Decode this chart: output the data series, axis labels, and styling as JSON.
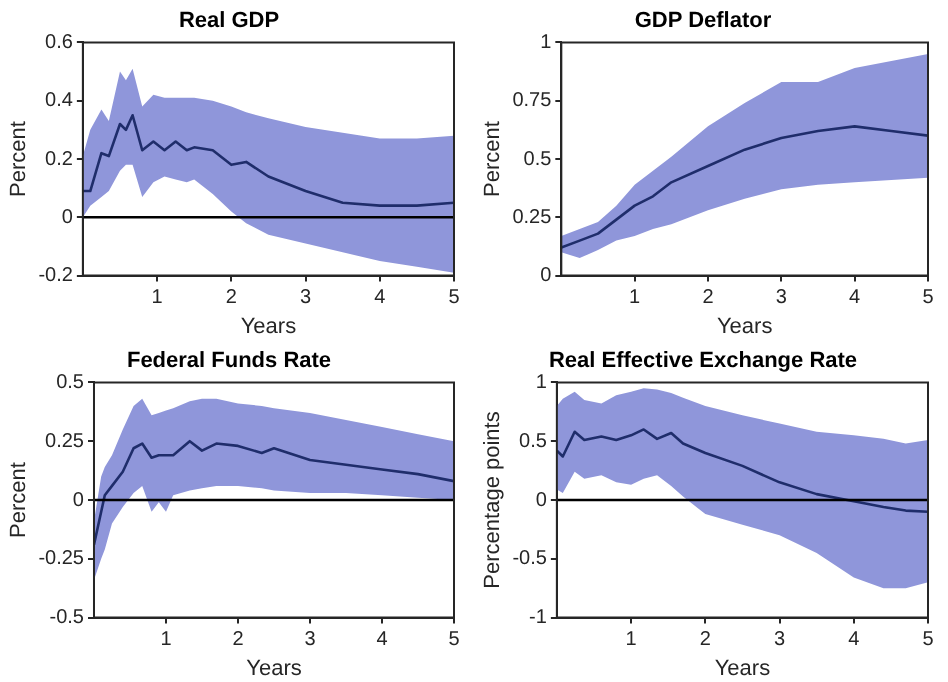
{
  "chart_data": [
    {
      "type": "line",
      "title": "Real GDP",
      "xlabel": "Years",
      "ylabel": "Percent",
      "x": [
        0,
        0.1,
        0.25,
        0.35,
        0.5,
        0.58,
        0.67,
        0.8,
        0.95,
        1.1,
        1.25,
        1.4,
        1.5,
        1.75,
        2,
        2.2,
        2.5,
        3,
        3.5,
        4,
        4.5,
        5
      ],
      "series": [
        {
          "color": "#1f2d6b",
          "values": [
            0.09,
            0.09,
            0.22,
            0.21,
            0.32,
            0.3,
            0.35,
            0.23,
            0.26,
            0.23,
            0.26,
            0.23,
            0.24,
            0.23,
            0.18,
            0.19,
            0.14,
            0.09,
            0.05,
            0.04,
            0.04,
            0.05
          ],
          "upper": [
            0.21,
            0.3,
            0.37,
            0.33,
            0.5,
            0.47,
            0.51,
            0.38,
            0.42,
            0.41,
            0.41,
            0.41,
            0.41,
            0.4,
            0.38,
            0.36,
            0.34,
            0.31,
            0.29,
            0.27,
            0.27,
            0.28
          ],
          "lower": [
            0,
            0.04,
            0.07,
            0.09,
            0.16,
            0.18,
            0.18,
            0.07,
            0.12,
            0.14,
            0.13,
            0.12,
            0.13,
            0.08,
            0.02,
            -0.02,
            -0.06,
            -0.09,
            -0.12,
            -0.15,
            -0.17,
            -0.19
          ]
        }
      ],
      "xlim": [
        0,
        5
      ],
      "xticks": [
        1,
        2,
        3,
        4,
        5
      ],
      "ylim": [
        -0.2,
        0.6
      ],
      "yticks": [
        -0.2,
        0,
        0.2,
        0.4,
        0.6
      ],
      "ref_lines": [
        {
          "axis": "y",
          "value": 0,
          "color": "#000000"
        }
      ],
      "grid": false,
      "legend": false,
      "marker": "none",
      "line_style": "solid"
    },
    {
      "type": "line",
      "title": "GDP Deflator",
      "xlabel": "Years",
      "ylabel": "Percent",
      "x": [
        0,
        0.25,
        0.5,
        0.75,
        1,
        1.25,
        1.5,
        2,
        2.5,
        3,
        3.5,
        4,
        4.5,
        5
      ],
      "series": [
        {
          "color": "#1f2d6b",
          "values": [
            0.12,
            0.15,
            0.18,
            0.24,
            0.3,
            0.34,
            0.4,
            0.47,
            0.54,
            0.59,
            0.62,
            0.64,
            0.62,
            0.6
          ],
          "upper": [
            0.17,
            0.2,
            0.23,
            0.3,
            0.39,
            0.45,
            0.51,
            0.64,
            0.74,
            0.83,
            0.83,
            0.89,
            0.92,
            0.95
          ],
          "lower": [
            0.1,
            0.075,
            0.11,
            0.15,
            0.17,
            0.2,
            0.22,
            0.28,
            0.33,
            0.37,
            0.39,
            0.4,
            0.41,
            0.42
          ]
        }
      ],
      "xlim": [
        0,
        5
      ],
      "xticks": [
        1,
        2,
        3,
        4,
        5
      ],
      "ylim": [
        0,
        1
      ],
      "yticks": [
        0,
        0.25,
        0.5,
        0.75,
        1
      ],
      "grid": false,
      "legend": false,
      "marker": "none",
      "line_style": "solid"
    },
    {
      "type": "line",
      "title": "Federal Funds Rate",
      "xlabel": "Years",
      "ylabel": "Percent",
      "x": [
        0,
        0.1,
        0.15,
        0.25,
        0.4,
        0.55,
        0.67,
        0.8,
        0.9,
        1,
        1.1,
        1.33,
        1.5,
        1.7,
        2,
        2.33,
        2.5,
        3,
        3.5,
        4,
        4.5,
        5
      ],
      "series": [
        {
          "color": "#1f2d6b",
          "values": [
            -0.19,
            -0.05,
            0.02,
            0.06,
            0.12,
            0.22,
            0.24,
            0.18,
            0.19,
            0.19,
            0.19,
            0.25,
            0.21,
            0.24,
            0.23,
            0.2,
            0.22,
            0.17,
            0.15,
            0.13,
            0.11,
            0.08
          ],
          "upper": [
            -0.09,
            0.1,
            0.14,
            0.19,
            0.3,
            0.4,
            0.43,
            0.36,
            0.37,
            0.38,
            0.39,
            0.42,
            0.43,
            0.43,
            0.41,
            0.4,
            0.39,
            0.37,
            0.34,
            0.31,
            0.28,
            0.25
          ],
          "lower": [
            -0.34,
            -0.25,
            -0.21,
            -0.1,
            -0.03,
            0.03,
            0.06,
            -0.05,
            -0.01,
            -0.05,
            0.02,
            0.04,
            0.05,
            0.06,
            0.06,
            0.05,
            0.04,
            0.03,
            0.03,
            0.02,
            0.01,
            0
          ]
        }
      ],
      "xlim": [
        0,
        5
      ],
      "xticks": [
        1,
        2,
        3,
        4,
        5
      ],
      "ylim": [
        -0.5,
        0.5
      ],
      "yticks": [
        -0.5,
        -0.25,
        0,
        0.25,
        0.5
      ],
      "ref_lines": [
        {
          "axis": "y",
          "value": 0,
          "color": "#000000"
        }
      ],
      "grid": false,
      "legend": false,
      "marker": "none",
      "line_style": "solid"
    },
    {
      "type": "line",
      "title": "Real Effective Exchange Rate",
      "xlabel": "Years",
      "ylabel": "Percentage points",
      "x": [
        0,
        0.08,
        0.24,
        0.37,
        0.6,
        0.8,
        1,
        1.17,
        1.35,
        1.54,
        1.7,
        2,
        2.5,
        3,
        3.5,
        4,
        4.4,
        4.7,
        5
      ],
      "series": [
        {
          "color": "#1f2d6b",
          "values": [
            0.42,
            0.37,
            0.58,
            0.51,
            0.54,
            0.51,
            0.55,
            0.6,
            0.52,
            0.57,
            0.48,
            0.4,
            0.29,
            0.15,
            0.05,
            -0.01,
            -0.06,
            -0.09,
            -0.1
          ],
          "upper": [
            0.8,
            0.86,
            0.92,
            0.85,
            0.82,
            0.89,
            0.92,
            0.95,
            0.94,
            0.91,
            0.87,
            0.8,
            0.72,
            0.65,
            0.58,
            0.55,
            0.52,
            0.48,
            0.51
          ],
          "lower": [
            0.09,
            0.06,
            0.24,
            0.18,
            0.21,
            0.15,
            0.13,
            0.18,
            0.21,
            0.12,
            0.03,
            -0.12,
            -0.21,
            -0.3,
            -0.45,
            -0.66,
            -0.75,
            -0.75,
            -0.7
          ]
        }
      ],
      "xlim": [
        0,
        5
      ],
      "xticks": [
        1,
        2,
        3,
        4,
        5
      ],
      "ylim": [
        -1,
        1
      ],
      "yticks": [
        -1,
        -0.5,
        0,
        0.5,
        1
      ],
      "ref_lines": [
        {
          "axis": "y",
          "value": 0,
          "color": "#000000"
        }
      ],
      "grid": false,
      "legend": false,
      "marker": "none",
      "line_style": "solid"
    }
  ]
}
